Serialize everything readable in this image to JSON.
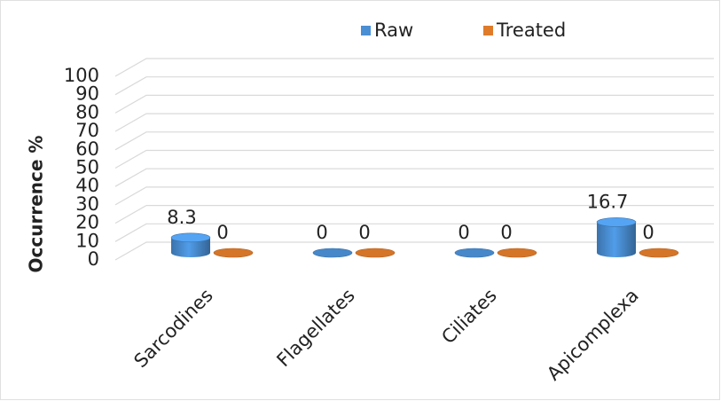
{
  "chart_data": {
    "type": "bar3d",
    "y_label": "Occurrence %",
    "categories": [
      "Sarcodines",
      "Flagellates",
      "Ciliates",
      "Apicomplexa"
    ],
    "series": [
      {
        "name": "Raw",
        "color": "#4a8fd4",
        "values": [
          8.3,
          0,
          0,
          16.7
        ]
      },
      {
        "name": "Treated",
        "color": "#e07b2a",
        "values": [
          0,
          0,
          0,
          0
        ]
      }
    ],
    "ylim": [
      0,
      100
    ],
    "yticks": [
      0,
      10,
      20,
      30,
      40,
      50,
      60,
      70,
      80,
      90,
      100
    ],
    "grid": true,
    "legend": "top"
  }
}
